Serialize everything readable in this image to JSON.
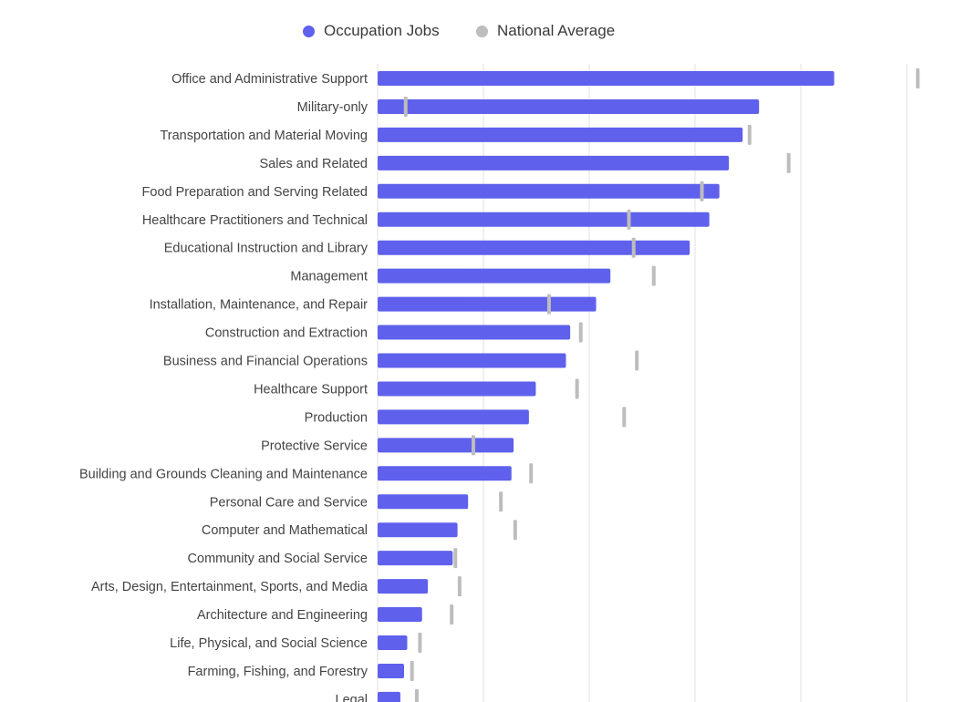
{
  "legend": {
    "occupation_label": "Occupation Jobs",
    "national_label": "National Average"
  },
  "colors": {
    "occupation": "#5f60ec",
    "national": "#bdbdbd",
    "grid": "#e2e2e2"
  },
  "chart_data": {
    "type": "bar",
    "orientation": "horizontal",
    "legend_position": "top-center",
    "grid": true,
    "xlim": [
      0,
      100
    ],
    "categories": [
      "Office and Administrative Support",
      "Military-only",
      "Transportation and Material Moving",
      "Sales and Related",
      "Food Preparation and Serving Related",
      "Healthcare Practitioners and Technical",
      "Educational Instruction and Library",
      "Management",
      "Installation, Maintenance, and Repair",
      "Construction and Extraction",
      "Business and Financial Operations",
      "Healthcare Support",
      "Production",
      "Protective Service",
      "Building and Grounds Cleaning and Maintenance",
      "Personal Care and Service",
      "Computer and Mathematical",
      "Community and Social Service",
      "Arts, Design, Entertainment, Sports, and Media",
      "Architecture and Engineering",
      "Life, Physical, and Social Science",
      "Farming, Fishing, and Forestry",
      "Legal"
    ],
    "series": [
      {
        "name": "Occupation Jobs",
        "values": [
          86.3,
          72.1,
          69.0,
          66.4,
          64.6,
          62.7,
          59.0,
          44.0,
          41.3,
          36.4,
          35.6,
          29.9,
          28.6,
          25.7,
          25.3,
          17.1,
          15.1,
          14.2,
          9.5,
          8.4,
          5.6,
          5.0,
          4.3
        ]
      },
      {
        "name": "National Average",
        "values": [
          102.1,
          5.3,
          70.3,
          77.7,
          61.3,
          47.5,
          48.4,
          52.2,
          32.4,
          38.4,
          49.0,
          37.7,
          46.6,
          18.1,
          29.0,
          23.3,
          26.0,
          14.7,
          15.5,
          14.0,
          8.0,
          6.5,
          7.4
        ]
      }
    ]
  }
}
